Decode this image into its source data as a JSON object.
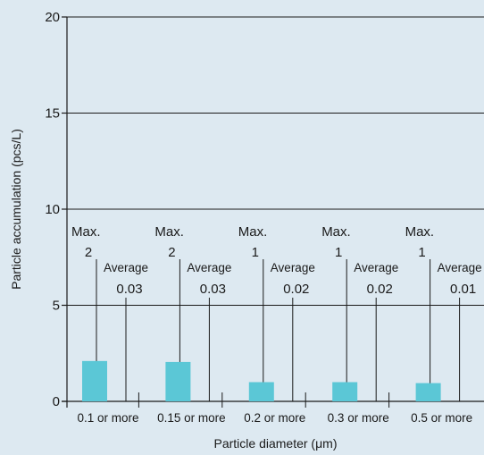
{
  "chart_data": {
    "type": "bar",
    "categories": [
      "0.1 or more",
      "0.15 or more",
      "0.2 or more",
      "0.3 or more",
      "0.5 or more"
    ],
    "values": [
      2.1,
      2.05,
      1.0,
      1.0,
      0.95
    ],
    "xlabel": "Particle diameter (μm)",
    "ylabel": "Particle accumulation (pcs/L)",
    "ylim": [
      0,
      20
    ],
    "yticks": [
      0,
      5,
      10,
      15,
      20
    ],
    "grid": true,
    "annotations": [
      {
        "max_label": "Max.",
        "max_value": "2",
        "avg_label": "Average",
        "avg_value": "0.03"
      },
      {
        "max_label": "Max.",
        "max_value": "2",
        "avg_label": "Average",
        "avg_value": "0.03"
      },
      {
        "max_label": "Max.",
        "max_value": "1",
        "avg_label": "Average",
        "avg_value": "0.02"
      },
      {
        "max_label": "Max.",
        "max_value": "1",
        "avg_label": "Average",
        "avg_value": "0.02"
      },
      {
        "max_label": "Max.",
        "max_value": "1",
        "avg_label": "Average",
        "avg_value": "0.01"
      }
    ],
    "colors": {
      "bar": "#5bc7d6",
      "background": "#dde9f1",
      "axis": "#1a1a1a"
    }
  }
}
